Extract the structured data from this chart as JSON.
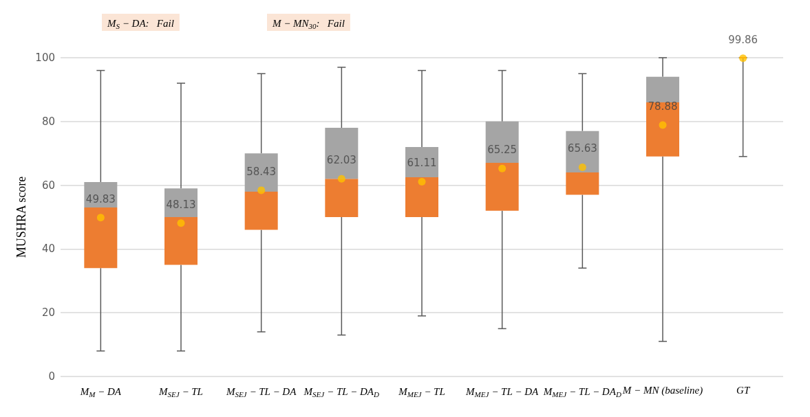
{
  "chart_data": {
    "type": "box",
    "ylabel": "MUSHRA score",
    "categories": [
      "M$_{M}$ − DA",
      "M$_{SEJ}$ − TL",
      "M$_{SEJ}$ − TL − DA",
      "M$_{SEJ}$ − TL − DA$_{D}$",
      "M$_{MEJ}$ − TL",
      "M$_{MEJ}$ − TL − DA",
      "M$_{MEJ}$ − TL − DA$_{D}$",
      "M − MN (baseline)",
      "GT"
    ],
    "series": [
      {
        "color": "#ed7d31",
        "boxes": [
          {
            "low": 8,
            "q1": 34,
            "median": 53,
            "q3": 61,
            "high": 96
          },
          {
            "low": 8,
            "q1": 35,
            "median": 50,
            "q3": 59,
            "high": 92
          },
          {
            "low": 14,
            "q1": 46,
            "median": 58,
            "q3": 70,
            "high": 95
          },
          {
            "low": 13,
            "q1": 50,
            "median": 62,
            "q3": 78,
            "high": 97
          },
          {
            "low": 19,
            "q1": 50,
            "median": 62.5,
            "q3": 72,
            "high": 96
          },
          {
            "low": 15,
            "q1": 52,
            "median": 67,
            "q3": 80,
            "high": 96
          },
          {
            "low": 34,
            "q1": 57,
            "median": 64,
            "q3": 77,
            "high": 95
          },
          {
            "low": 11,
            "q1": 69,
            "median": 86,
            "q3": 94,
            "high": 100
          },
          {
            "low": 69,
            "q1": 100,
            "median": 100,
            "q3": 100,
            "high": 100
          }
        ]
      },
      {
        "type": "scatter",
        "color": "#ffc000",
        "x": [
          "M$_{M}$ − DA",
          "M$_{SEJ}$ − TL",
          "M$_{SEJ}$ − TL − DA",
          "M$_{SEJ}$ − TL − DA$_{D}$",
          "M$_{MEJ}$ − TL",
          "M$_{MEJ}$ − TL − DA",
          "M$_{MEJ}$ − TL − DA$_{D}$",
          "M − MN (baseline)",
          "GT"
        ],
        "values": [
          49.83,
          48.13,
          58.43,
          62.03,
          61.11,
          65.25,
          65.63,
          78.88,
          99.86
        ]
      }
    ],
    "data_labels": true,
    "ylim": [
      0,
      100
    ],
    "yticks": [
      0,
      20,
      40,
      60,
      80,
      100
    ],
    "grid": "y",
    "annotations": [
      "M$_{S}$ − DA:   Fail",
      "M − MN$_{30}$:   Fail"
    ]
  }
}
